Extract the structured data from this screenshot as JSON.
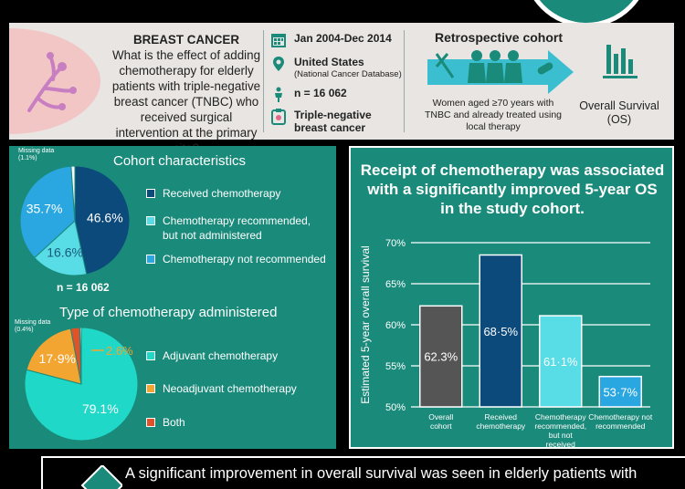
{
  "header": {
    "question_title": "BREAST CANCER",
    "question_text": "What is the effect of adding chemotherapy for elderly patients with triple-negative breast cancer (TNBC) who received surgical intervention at the primary site?",
    "dates": "Jan 2004-Dec 2014",
    "location": "United States",
    "location_sub": "(National Cancer Database)",
    "n": "n = 16 062",
    "cancer_type": "Triple-negative breast cancer",
    "retro_title": "Retrospective cohort",
    "retro_desc": "Women aged ≥70 years with TNBC and already treated using local therapy",
    "outcome": "Overall Survival (OS)"
  },
  "colors": {
    "teal_bg": "#1a8a7a",
    "navy": "#0d4a7c",
    "light_cyan": "#58dce6",
    "sky_blue": "#2aa6e0",
    "aqua": "#1fd8c8",
    "orange": "#f2a531",
    "red": "#e0522a",
    "gray": "#555555",
    "white": "#ffffff"
  },
  "chart_data": [
    {
      "type": "pie",
      "title": "Cohort characteristics",
      "n_label": "n = 16 062",
      "slices": [
        {
          "label": "Received chemotherapy",
          "value": 46.6,
          "text": "46.6%",
          "color": "#0d4a7c"
        },
        {
          "label": "Chemotherapy recommended, but not administered",
          "value": 16.6,
          "text": "16.6%",
          "color": "#58dce6"
        },
        {
          "label": "Chemotherapy not recommended",
          "value": 35.7,
          "text": "35.7%",
          "color": "#2aa6e0"
        },
        {
          "label": "Missing data",
          "value": 1.1,
          "text": "(1.1%)",
          "color": "#ffffff"
        }
      ]
    },
    {
      "type": "pie",
      "title": "Type of chemotherapy administered",
      "slices": [
        {
          "label": "Adjuvant chemotherapy",
          "value": 79.1,
          "text": "79.1%",
          "color": "#1fd8c8"
        },
        {
          "label": "Neoadjuvant chemotherapy",
          "value": 17.9,
          "text": "17·9%",
          "color": "#f2a531"
        },
        {
          "label": "Both",
          "value": 2.6,
          "text": "2.6%",
          "color": "#e0522a"
        },
        {
          "label": "Missing data",
          "value": 0.4,
          "text": "(0.4%)",
          "color": "#ffffff"
        }
      ]
    },
    {
      "type": "bar",
      "title": "Receipt of chemotherapy was associated with a significantly improved 5-year OS in the study cohort.",
      "ylabel": "Estimated 5-year overall survival",
      "ylim": [
        50,
        70
      ],
      "yticks": [
        "50%",
        "55%",
        "60%",
        "65%",
        "70%"
      ],
      "yticks_values": [
        50,
        55,
        60,
        65,
        70
      ],
      "categories": [
        "Overall cohort",
        "Received chemotherapy",
        "Chemotherapy recommended, but not received",
        "Chemotherapy not recommended"
      ],
      "values": [
        62.3,
        68.5,
        61.1,
        53.7
      ],
      "value_labels": [
        "62.3%",
        "68·5%",
        "61·1%",
        "53·7%"
      ],
      "bar_colors": [
        "#555555",
        "#0d4a7c",
        "#58dce6",
        "#2aa6e0"
      ]
    }
  ],
  "footer": {
    "text": "A significant improvement in overall survival was seen in elderly patients with"
  }
}
